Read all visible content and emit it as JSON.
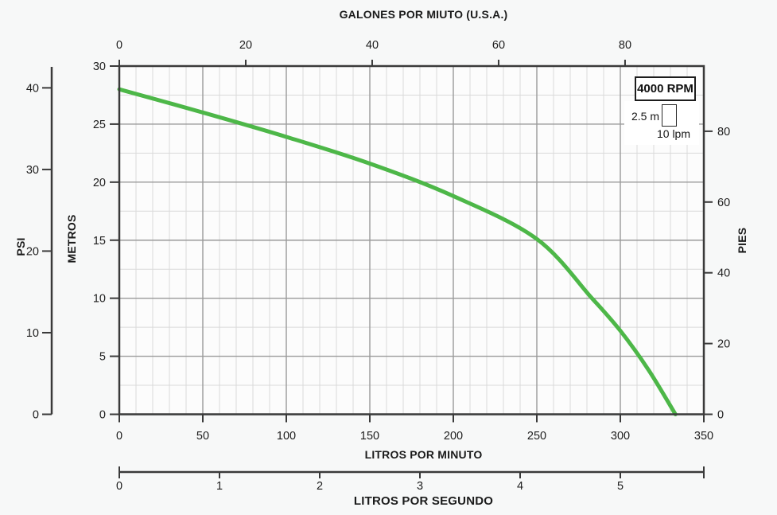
{
  "colors": {
    "page_bg": "#f7f8f8",
    "plot_bg": "#fcfcfc",
    "grid_minor": "#dadada",
    "grid_major": "#9a9a9a",
    "axis": "#3a3a3a",
    "text": "#1c1c1c",
    "curve": "#4db748"
  },
  "chart_data": {
    "type": "line",
    "title": "",
    "axes": {
      "top": {
        "label": "GALONES POR MIUTO (U.S.A.)",
        "ticks": [
          0,
          20,
          40,
          60,
          80
        ],
        "lpm_per_unit": 3.78541
      },
      "bottom": {
        "label": "LITROS POR MINUTO",
        "ticks": [
          0,
          50,
          100,
          150,
          200,
          250,
          300,
          350
        ],
        "range": [
          0,
          350
        ]
      },
      "bottom_secondary": {
        "label": "LITROS POR SEGUNDO",
        "ticks": [
          0,
          1,
          2,
          3,
          4,
          5
        ],
        "lpm_per_unit": 60
      },
      "left": {
        "label": "METROS",
        "ticks": [
          0,
          5,
          10,
          15,
          20,
          25,
          30
        ],
        "range": [
          0,
          30
        ]
      },
      "left_outer": {
        "label": "PSI",
        "ticks": [
          0,
          10,
          20,
          30,
          40
        ],
        "m_per_unit": 0.70307
      },
      "right": {
        "label": "PIES",
        "ticks": [
          0,
          20,
          40,
          60,
          80
        ],
        "m_per_unit": 0.3048
      }
    },
    "grid": {
      "minor_x_step_lpm": 10,
      "major_x_step_lpm": 50,
      "minor_y_step_m": 2.5,
      "major_y_step_m": 5,
      "grid_on": true
    },
    "series": [
      {
        "name": "4000 RPM",
        "x_unit": "L/min",
        "y_unit": "m",
        "color": "#4db748",
        "points": [
          [
            0,
            28.0
          ],
          [
            50,
            26.0
          ],
          [
            100,
            23.9
          ],
          [
            150,
            21.6
          ],
          [
            200,
            18.8
          ],
          [
            250,
            15.1
          ],
          [
            283,
            10.0
          ],
          [
            300,
            7.2
          ],
          [
            317,
            3.8
          ],
          [
            333,
            0.0
          ]
        ]
      }
    ],
    "legend": {
      "position": "top-right",
      "rpm_label": "4000 RPM",
      "scale_vertical_label": "2.5 m",
      "scale_horizontal_label": "10 lpm"
    }
  }
}
